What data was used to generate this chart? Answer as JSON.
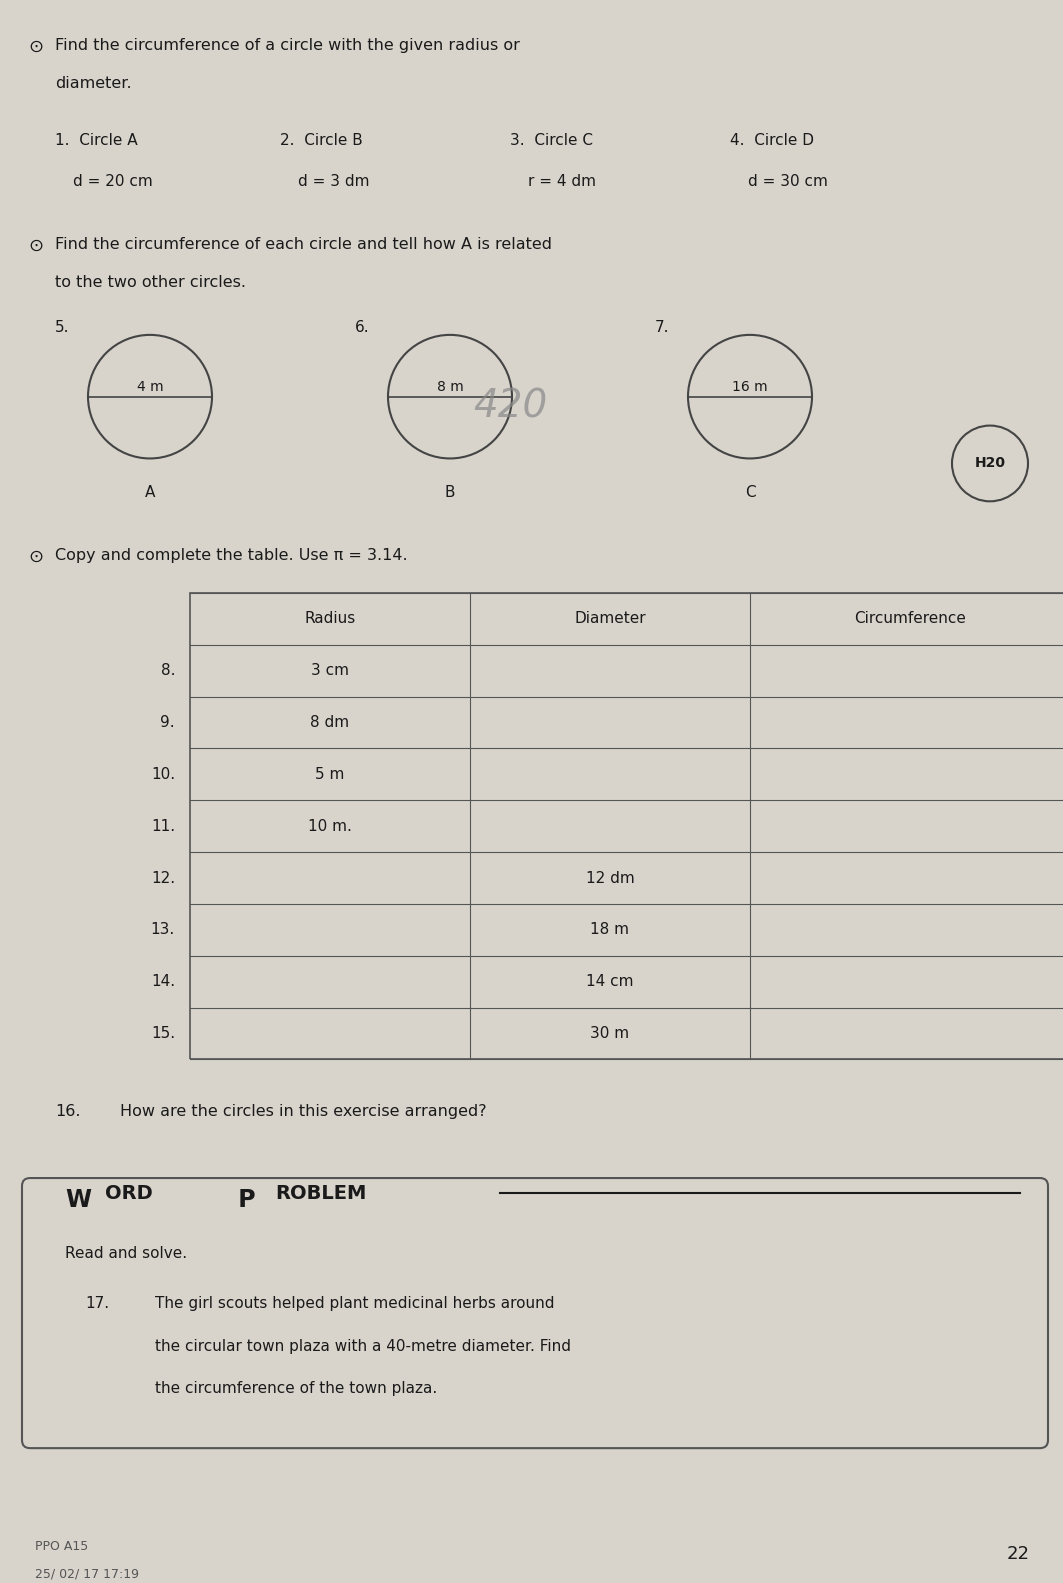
{
  "bg_color": "#d8d4cc",
  "text_color": "#1a1a1a",
  "page_number": "22",
  "section1": {
    "bullet": "⊙",
    "line1": "Find the circumference of a circle with the given radius or",
    "line2": "diameter.",
    "items": [
      {
        "num": "1.",
        "label": "Circle A",
        "sub": "d = 20 cm"
      },
      {
        "num": "2.",
        "label": "Circle B",
        "sub": "d = 3 dm"
      },
      {
        "num": "3.",
        "label": "Circle C",
        "sub": "r = 4 dm"
      },
      {
        "num": "4.",
        "label": "Circle D",
        "sub": "d = 30 cm"
      }
    ]
  },
  "section2": {
    "bullet": "⊙",
    "line1": "Find the circumference of each circle and tell how A is related",
    "line2": "to the two other circles.",
    "circles": [
      {
        "num": "5.",
        "label": "A",
        "radius_label": "4 m"
      },
      {
        "num": "6.",
        "label": "B",
        "radius_label": "8 m"
      },
      {
        "num": "7.",
        "label": "C",
        "radius_label": "16 m"
      }
    ],
    "handwriting": "420"
  },
  "section3": {
    "bullet": "⊙",
    "instruction": "Copy and complete the table. Use π = 3.14.",
    "headers": [
      "Radius",
      "Diameter",
      "Circumference"
    ],
    "rows": [
      {
        "num": "8.",
        "radius": "3 cm",
        "diameter": "",
        "circumference": ""
      },
      {
        "num": "9.",
        "radius": "8 dm",
        "diameter": "",
        "circumference": ""
      },
      {
        "num": "10.",
        "radius": "5 m",
        "diameter": "",
        "circumference": ""
      },
      {
        "num": "11.",
        "radius": "10 m.",
        "diameter": "",
        "circumference": ""
      },
      {
        "num": "12.",
        "radius": "",
        "diameter": "12 dm",
        "circumference": ""
      },
      {
        "num": "13.",
        "radius": "",
        "diameter": "18 m",
        "circumference": ""
      },
      {
        "num": "14.",
        "radius": "",
        "diameter": "14 cm",
        "circumference": ""
      },
      {
        "num": "15.",
        "radius": "",
        "diameter": "30 m",
        "circumference": ""
      }
    ]
  },
  "section4": {
    "num": "16.",
    "text": "How are the circles in this exercise arranged?"
  },
  "section5": {
    "read_solve": "Read and solve.",
    "num": "17.",
    "text_line1": "The girl scouts helped plant medicinal herbs around",
    "text_line2": "the circular town plaza with a 40-metre diameter. Find",
    "text_line3": "the circumference of the town plaza."
  },
  "footer_left1": "PPO A15",
  "footer_left2": "25/ 02/ 17 17:19",
  "h20_label": "H20"
}
